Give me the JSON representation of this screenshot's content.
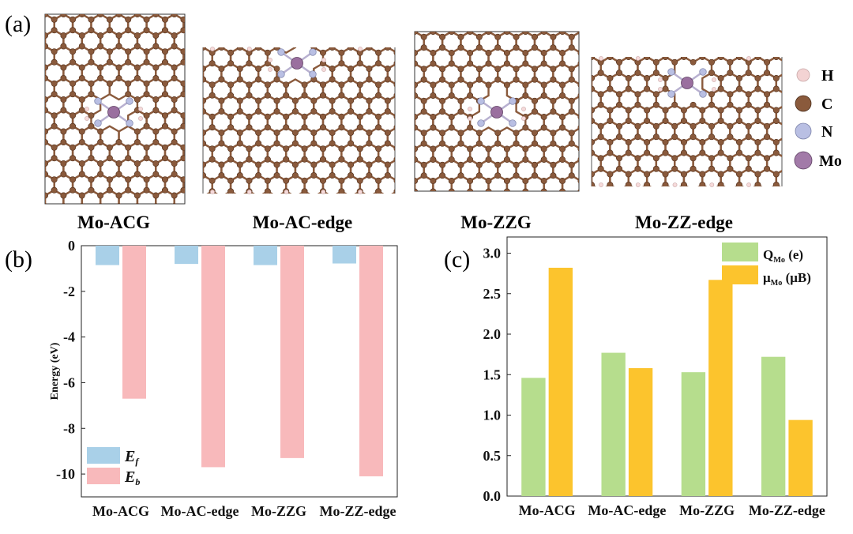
{
  "panel_a": {
    "label": "(a)",
    "structures": [
      {
        "name": "Mo-ACG"
      },
      {
        "name": "Mo-AC-edge"
      },
      {
        "name": "Mo-ZZG"
      },
      {
        "name": "Mo-ZZ-edge"
      }
    ],
    "legend": [
      {
        "symbol": "H",
        "color": "#f3d3d3"
      },
      {
        "symbol": "C",
        "color": "#8a5a3c"
      },
      {
        "symbol": "N",
        "color": "#b9bfe3"
      },
      {
        "symbol": "Mo",
        "color": "#a27aa8"
      }
    ],
    "colors": {
      "carbon": "#8a5a3c",
      "bond": "#8a5a3c",
      "hydrogen": "#f6dada",
      "nitrogen": "#b9bfe3",
      "molybdenum": "#9a6f9f"
    }
  },
  "chart_data": [
    {
      "type": "bar",
      "panel_label": "(b)",
      "categories": [
        "Mo-ACG",
        "Mo-AC-edge",
        "Mo-ZZG",
        "Mo-ZZ-edge"
      ],
      "series": [
        {
          "name": "E",
          "subscript": "f",
          "color": "#a9d0e8",
          "values": [
            -0.85,
            -0.8,
            -0.85,
            -0.78
          ]
        },
        {
          "name": "E",
          "subscript": "b",
          "color": "#f8b9bb",
          "values": [
            -6.7,
            -9.7,
            -9.3,
            -10.1
          ]
        }
      ],
      "ylabel": "Energy (eV)",
      "ylim": [
        -11,
        0
      ],
      "yticks": [
        0,
        -2,
        -4,
        -6,
        -8,
        -10
      ],
      "ytick_labels": [
        "0",
        "-2",
        "-4",
        "-6",
        "-8",
        "-10"
      ],
      "legend_position": "bottom-left"
    },
    {
      "type": "bar",
      "panel_label": "(c)",
      "categories": [
        "Mo-ACG",
        "Mo-AC-edge",
        "Mo-ZZG",
        "Mo-ZZ-edge"
      ],
      "series": [
        {
          "name": "Q",
          "subscript": "Mo",
          "unit": " (e)",
          "color": "#b6dd8d",
          "values": [
            1.46,
            1.77,
            1.53,
            1.72
          ]
        },
        {
          "name": "μ",
          "subscript": "Mo",
          "unit": " (μB)",
          "color": "#fcc42d",
          "values": [
            2.82,
            1.58,
            2.67,
            0.94
          ]
        }
      ],
      "ylim": [
        0,
        3.2
      ],
      "yticks": [
        0,
        0.5,
        1.0,
        1.5,
        2.0,
        2.5,
        3.0
      ],
      "ytick_labels": [
        "0.0",
        "0.5",
        "1.0",
        "1.5",
        "2.0",
        "2.5",
        "3.0"
      ],
      "legend_position": "top-right"
    }
  ]
}
